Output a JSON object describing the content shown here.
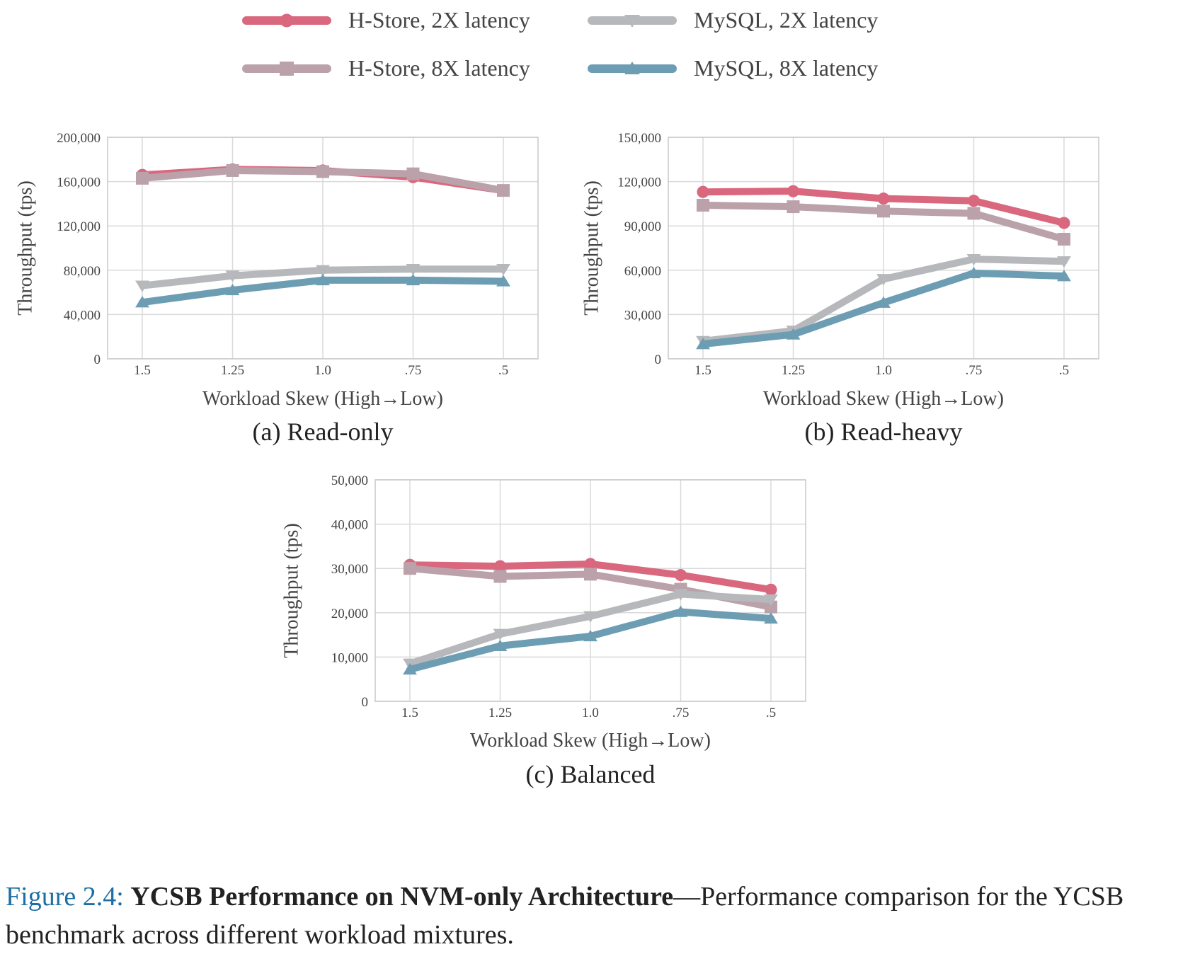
{
  "legend": [
    {
      "name": "H-Store, 2X latency",
      "color": "#d9687f",
      "marker": "circle"
    },
    {
      "name": "H-Store, 8X latency",
      "color": "#bba2aa",
      "marker": "square"
    },
    {
      "name": "MySQL, 2X latency",
      "color": "#b7b8bb",
      "marker": "triangle-down"
    },
    {
      "name": "MySQL, 8X latency",
      "color": "#6c9db3",
      "marker": "triangle-up"
    }
  ],
  "chart_data": [
    {
      "type": "line",
      "subtitle": "(a) Read-only",
      "xlabel": "Workload Skew (High→Low)",
      "ylabel": "Throughput (tps)",
      "categories": [
        "1.5",
        "1.25",
        "1.0",
        ".75",
        ".5"
      ],
      "ylim": [
        0,
        200000
      ],
      "yticks": [
        "0",
        "40,000",
        "80,000",
        "120,000",
        "160,000",
        "200,000"
      ],
      "grid": true,
      "series": [
        {
          "name": "H-Store, 2X latency",
          "values": [
            166000,
            171000,
            170000,
            164000,
            152000
          ]
        },
        {
          "name": "H-Store, 8X latency",
          "values": [
            163000,
            170000,
            169000,
            167000,
            152000
          ]
        },
        {
          "name": "MySQL, 2X latency",
          "values": [
            66000,
            75000,
            80000,
            81000,
            81000
          ]
        },
        {
          "name": "MySQL, 8X latency",
          "values": [
            51000,
            62000,
            71000,
            71000,
            70000
          ]
        }
      ]
    },
    {
      "type": "line",
      "subtitle": "(b) Read-heavy",
      "xlabel": "Workload Skew (High→Low)",
      "ylabel": "Throughput (tps)",
      "categories": [
        "1.5",
        "1.25",
        "1.0",
        ".75",
        ".5"
      ],
      "ylim": [
        0,
        150000
      ],
      "yticks": [
        "0",
        "30,000",
        "60,000",
        "90,000",
        "120,000",
        "150,000"
      ],
      "grid": true,
      "series": [
        {
          "name": "H-Store, 2X latency",
          "values": [
            113000,
            113500,
            108500,
            107000,
            92000
          ]
        },
        {
          "name": "H-Store, 8X latency",
          "values": [
            104000,
            103000,
            100000,
            98500,
            81000
          ]
        },
        {
          "name": "MySQL, 2X latency",
          "values": [
            12000,
            19000,
            54000,
            67500,
            66000
          ]
        },
        {
          "name": "MySQL, 8X latency",
          "values": [
            10000,
            16500,
            38000,
            58000,
            56000
          ]
        }
      ]
    },
    {
      "type": "line",
      "subtitle": "(c) Balanced",
      "xlabel": "Workload Skew (High→Low)",
      "ylabel": "Throughput (tps)",
      "categories": [
        "1.5",
        "1.25",
        "1.0",
        ".75",
        ".5"
      ],
      "ylim": [
        0,
        50000
      ],
      "yticks": [
        "0",
        "10,000",
        "20,000",
        "30,000",
        "40,000",
        "50,000"
      ],
      "grid": true,
      "series": [
        {
          "name": "H-Store, 2X latency",
          "values": [
            30800,
            30500,
            31000,
            28500,
            25200
          ]
        },
        {
          "name": "H-Store, 8X latency",
          "values": [
            30000,
            28200,
            28700,
            25300,
            21300
          ]
        },
        {
          "name": "MySQL, 2X latency",
          "values": [
            8500,
            15200,
            19200,
            24200,
            23000
          ]
        },
        {
          "name": "MySQL, 8X latency",
          "values": [
            7200,
            12500,
            14700,
            20200,
            18700
          ]
        }
      ]
    }
  ],
  "caption": {
    "number": "Figure 2.4:",
    "title": "YCSB Performance on NVM-only Architecture",
    "text": "—Performance comparison for the YCSB benchmark across different workload mixtures."
  }
}
